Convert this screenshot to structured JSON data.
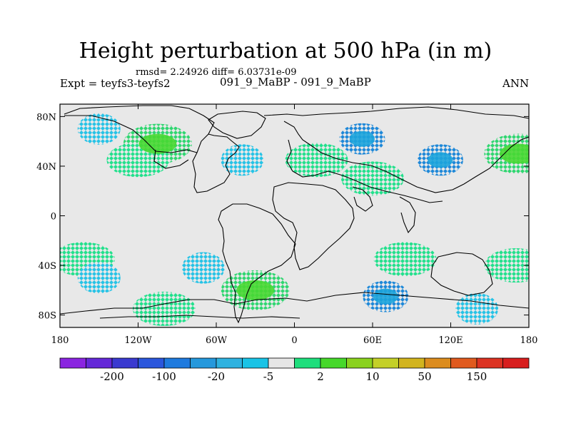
{
  "title": "Height perturbation at 500 hPa (in m)",
  "stats": "rmsd= 2.24926  diff= 6.03731e-09",
  "left_label": "Expt = teyfs3-teyfs2",
  "center_label": "091_9_MaBP - 091_9_MaBP",
  "right_label": "ANN",
  "lat_axis": [
    {
      "label": "80N",
      "lat": 80
    },
    {
      "label": "40N",
      "lat": 40
    },
    {
      "label": "0",
      "lat": 0
    },
    {
      "label": "40S",
      "lat": -40
    },
    {
      "label": "80S",
      "lat": -80
    }
  ],
  "lon_axis": [
    {
      "label": "180",
      "lon": -180
    },
    {
      "label": "120W",
      "lon": -120
    },
    {
      "label": "60W",
      "lon": -60
    },
    {
      "label": "0",
      "lon": 0
    },
    {
      "label": "60E",
      "lon": 60
    },
    {
      "label": "120E",
      "lon": 120
    },
    {
      "label": "180",
      "lon": 180
    }
  ],
  "colorbar": {
    "colors": [
      "#8a24e0",
      "#6428d8",
      "#3a3ad0",
      "#2a56dc",
      "#1e7ade",
      "#2598dc",
      "#2eb2e0",
      "#19c3e6",
      "#e6e6e6",
      "#1ede7c",
      "#46d82a",
      "#8ad21e",
      "#c4d028",
      "#d2b41e",
      "#dc8c1e",
      "#e05a1e",
      "#dc3222",
      "#d81e1e"
    ],
    "labels": [
      "-200",
      "-100",
      "-20",
      "-5",
      "2",
      "10",
      "50",
      "150"
    ]
  },
  "chart_data": {
    "type": "heatmap",
    "title": "Height perturbation at 500 hPa (in m)",
    "xlim": [
      -180,
      180
    ],
    "ylim": [
      -90,
      90
    ],
    "field_regions": [
      {
        "lon": -150,
        "lat": 70,
        "level": "cyan"
      },
      {
        "lon": -105,
        "lat": 58,
        "level": "green"
      },
      {
        "lon": -120,
        "lat": 45,
        "level": "light-green"
      },
      {
        "lon": -40,
        "lat": 45,
        "level": "cyan"
      },
      {
        "lon": 17,
        "lat": 45,
        "level": "light-green"
      },
      {
        "lon": 52,
        "lat": 62,
        "level": "blue"
      },
      {
        "lon": 60,
        "lat": 30,
        "level": "light-green"
      },
      {
        "lon": 112,
        "lat": 45,
        "level": "blue"
      },
      {
        "lon": 172,
        "lat": 50,
        "level": "green"
      },
      {
        "lon": -162,
        "lat": -35,
        "level": "light-green"
      },
      {
        "lon": -150,
        "lat": -50,
        "level": "cyan"
      },
      {
        "lon": -70,
        "lat": -42,
        "level": "cyan"
      },
      {
        "lon": -30,
        "lat": -60,
        "level": "green"
      },
      {
        "lon": -100,
        "lat": -75,
        "level": "light-green"
      },
      {
        "lon": 70,
        "lat": -65,
        "level": "blue"
      },
      {
        "lon": 85,
        "lat": -35,
        "level": "light-green"
      },
      {
        "lon": 140,
        "lat": -75,
        "level": "cyan"
      },
      {
        "lon": 170,
        "lat": -40,
        "level": "light-green"
      }
    ]
  }
}
